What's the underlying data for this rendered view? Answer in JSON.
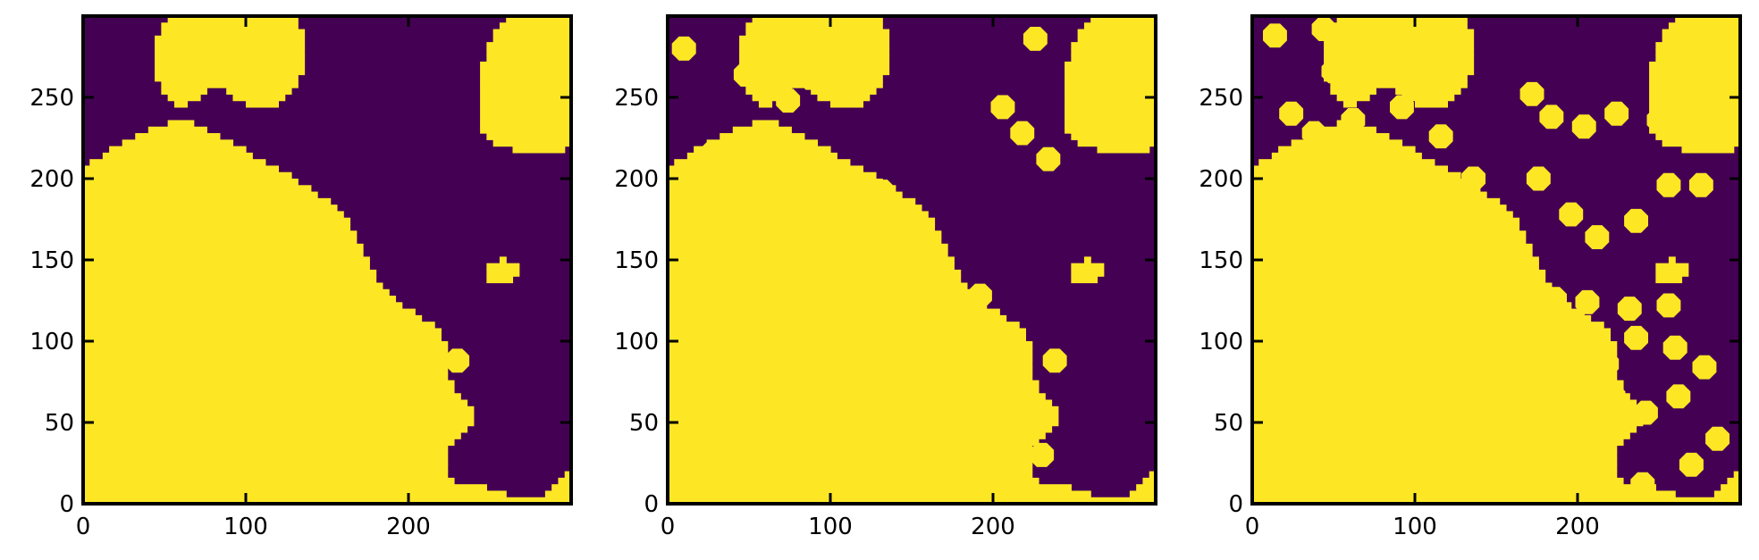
{
  "chart_data": [
    {
      "type": "heatmap",
      "panel": "left",
      "description_values": "binary phase field, random connected blobs",
      "x_ticks": [
        "0",
        "100",
        "200"
      ],
      "y_ticks": [
        "0",
        "50",
        "100",
        "150",
        "200",
        "250"
      ],
      "x_ticks_values": [
        0,
        100,
        200
      ],
      "y_ticks_values": [
        0,
        50,
        100,
        150,
        200,
        250
      ],
      "xlim": [
        0,
        300
      ],
      "ylim": [
        0,
        300
      ],
      "colors": {
        "low": "#440154",
        "high": "#fde725"
      },
      "disks": [
        [
          230,
          88,
          8
        ]
      ]
    },
    {
      "type": "heatmap",
      "panel": "middle",
      "x_ticks": [
        "0",
        "100",
        "200"
      ],
      "y_ticks": [
        "0",
        "50",
        "100",
        "150",
        "200",
        "250"
      ],
      "x_ticks_values": [
        0,
        100,
        200
      ],
      "y_ticks_values": [
        0,
        50,
        100,
        150,
        200,
        250
      ],
      "xlim": [
        0,
        300
      ],
      "ylim": [
        0,
        300
      ],
      "colors": {
        "low": "#440154",
        "high": "#fde725"
      },
      "disks": [
        [
          10,
          280,
          8
        ],
        [
          58,
          288,
          8
        ],
        [
          98,
          288,
          8
        ],
        [
          48,
          264,
          8
        ],
        [
          88,
          262,
          8
        ],
        [
          110,
          270,
          8
        ],
        [
          128,
          274,
          8
        ],
        [
          74,
          248,
          8
        ],
        [
          28,
          216,
          8
        ],
        [
          48,
          216,
          8
        ],
        [
          14,
          186,
          8
        ],
        [
          132,
          192,
          8
        ],
        [
          218,
          228,
          8
        ],
        [
          234,
          212,
          8
        ],
        [
          206,
          244,
          8
        ],
        [
          58,
          124,
          8
        ],
        [
          130,
          126,
          8
        ],
        [
          174,
          118,
          8
        ],
        [
          192,
          128,
          8
        ],
        [
          6,
          102,
          8
        ],
        [
          62,
          100,
          8
        ],
        [
          216,
          80,
          8
        ],
        [
          238,
          88,
          8
        ],
        [
          174,
          28,
          8
        ],
        [
          198,
          20,
          8
        ],
        [
          114,
          10,
          8
        ],
        [
          230,
          30,
          8
        ],
        [
          226,
          286,
          8
        ]
      ]
    },
    {
      "type": "heatmap",
      "panel": "right",
      "x_ticks": [
        "0",
        "100",
        "200"
      ],
      "y_ticks": [
        "0",
        "50",
        "100",
        "150",
        "200",
        "250"
      ],
      "x_ticks_values": [
        0,
        100,
        200
      ],
      "y_ticks_values": [
        0,
        50,
        100,
        150,
        200,
        250
      ],
      "xlim": [
        0,
        300
      ],
      "ylim": [
        0,
        300
      ],
      "colors": {
        "low": "#440154",
        "high": "#fde725"
      },
      "disks": [
        [
          14,
          288,
          8
        ],
        [
          44,
          292,
          8
        ],
        [
          68,
          290,
          8
        ],
        [
          88,
          290,
          8
        ],
        [
          50,
          266,
          8
        ],
        [
          72,
          264,
          8
        ],
        [
          92,
          264,
          8
        ],
        [
          24,
          240,
          8
        ],
        [
          38,
          228,
          8
        ],
        [
          62,
          236,
          8
        ],
        [
          92,
          244,
          8
        ],
        [
          116,
          226,
          8
        ],
        [
          22,
          210,
          8
        ],
        [
          42,
          198,
          8
        ],
        [
          60,
          208,
          8
        ],
        [
          84,
          212,
          8
        ],
        [
          104,
          200,
          8
        ],
        [
          136,
          200,
          8
        ],
        [
          172,
          252,
          8
        ],
        [
          184,
          238,
          8
        ],
        [
          204,
          232,
          8
        ],
        [
          224,
          240,
          8
        ],
        [
          250,
          236,
          8
        ],
        [
          176,
          200,
          8
        ],
        [
          196,
          178,
          8
        ],
        [
          212,
          164,
          8
        ],
        [
          236,
          174,
          8
        ],
        [
          256,
          196,
          8
        ],
        [
          276,
          196,
          8
        ],
        [
          12,
          186,
          8
        ],
        [
          8,
          158,
          8
        ],
        [
          28,
          146,
          8
        ],
        [
          58,
          164,
          8
        ],
        [
          84,
          140,
          8
        ],
        [
          104,
          130,
          8
        ],
        [
          122,
          138,
          8
        ],
        [
          146,
          142,
          8
        ],
        [
          170,
          140,
          8
        ],
        [
          186,
          126,
          8
        ],
        [
          206,
          124,
          8
        ],
        [
          232,
          120,
          8
        ],
        [
          256,
          122,
          8
        ],
        [
          14,
          120,
          8
        ],
        [
          30,
          104,
          8
        ],
        [
          50,
          104,
          8
        ],
        [
          72,
          102,
          8
        ],
        [
          96,
          98,
          8
        ],
        [
          124,
          86,
          8
        ],
        [
          146,
          92,
          8
        ],
        [
          168,
          96,
          8
        ],
        [
          198,
          104,
          8
        ],
        [
          218,
          86,
          8
        ],
        [
          236,
          102,
          8
        ],
        [
          260,
          96,
          8
        ],
        [
          278,
          84,
          8
        ],
        [
          20,
          78,
          8
        ],
        [
          44,
          62,
          8
        ],
        [
          72,
          66,
          8
        ],
        [
          96,
          62,
          8
        ],
        [
          122,
          60,
          8
        ],
        [
          146,
          56,
          8
        ],
        [
          172,
          48,
          8
        ],
        [
          198,
          62,
          8
        ],
        [
          222,
          66,
          8
        ],
        [
          242,
          56,
          8
        ],
        [
          262,
          66,
          8
        ],
        [
          20,
          40,
          8
        ],
        [
          44,
          42,
          8
        ],
        [
          70,
          30,
          8
        ],
        [
          96,
          42,
          8
        ],
        [
          118,
          38,
          8
        ],
        [
          142,
          30,
          8
        ],
        [
          162,
          10,
          8
        ],
        [
          190,
          40,
          8
        ],
        [
          212,
          30,
          8
        ],
        [
          240,
          12,
          8
        ],
        [
          270,
          24,
          8
        ],
        [
          286,
          40,
          8
        ],
        [
          32,
          10,
          8
        ],
        [
          108,
          10,
          8
        ]
      ]
    }
  ]
}
